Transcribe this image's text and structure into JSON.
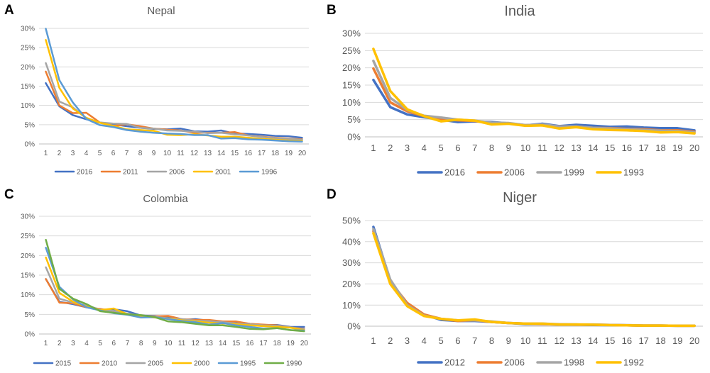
{
  "panels": [
    {
      "letter": "A",
      "chart_data": {
        "type": "line",
        "title": "Nepal",
        "xlabel": "",
        "ylabel": "",
        "x": [
          1,
          2,
          3,
          4,
          5,
          6,
          7,
          8,
          9,
          10,
          11,
          12,
          13,
          14,
          15,
          16,
          17,
          18,
          19,
          20
        ],
        "ylim": [
          0,
          30
        ],
        "yticks": [
          "0%",
          "5%",
          "10%",
          "15%",
          "20%",
          "25%",
          "30%"
        ],
        "grid": true,
        "legend": "bottom",
        "series": [
          {
            "name": "2016",
            "color": "#4472C4",
            "values": [
              15.8,
              9.8,
              7.5,
              6.4,
              5.5,
              5.1,
              4.6,
              4.2,
              3.9,
              3.8,
              4.0,
              3.3,
              3.2,
              3.5,
              2.7,
              2.6,
              2.4,
              2.1,
              2.0,
              1.6
            ]
          },
          {
            "name": "2011",
            "color": "#ED7D31",
            "values": [
              18.8,
              10.0,
              8.0,
              8.1,
              5.6,
              4.7,
              5.1,
              4.6,
              4.0,
              3.7,
              3.5,
              2.9,
              2.9,
              2.9,
              3.1,
              2.2,
              1.9,
              1.6,
              1.4,
              1.2
            ]
          },
          {
            "name": "2006",
            "color": "#A5A5A5",
            "values": [
              21.0,
              11.0,
              9.5,
              6.7,
              5.6,
              5.3,
              5.2,
              4.2,
              4.0,
              3.5,
              3.4,
              3.2,
              2.8,
              2.9,
              2.5,
              2.2,
              1.8,
              1.5,
              1.3,
              1.1
            ]
          },
          {
            "name": "2001",
            "color": "#FFC000",
            "values": [
              27.0,
              14.6,
              9.2,
              6.8,
              5.5,
              4.7,
              3.8,
              3.6,
              3.4,
              2.4,
              2.3,
              2.5,
              2.2,
              1.9,
              1.9,
              1.6,
              1.3,
              1.1,
              0.9,
              0.8
            ]
          },
          {
            "name": "1996",
            "color": "#5B9BD5",
            "values": [
              29.9,
              16.6,
              10.8,
              6.5,
              4.9,
              4.4,
              3.6,
              3.2,
              2.9,
              2.7,
              2.6,
              2.3,
              2.3,
              1.4,
              1.5,
              1.2,
              1.1,
              0.9,
              0.7,
              0.6
            ]
          }
        ]
      }
    },
    {
      "letter": "B",
      "chart_data": {
        "type": "line",
        "title": "India",
        "xlabel": "",
        "ylabel": "",
        "x": [
          1,
          2,
          3,
          4,
          5,
          6,
          7,
          8,
          9,
          10,
          11,
          12,
          13,
          14,
          15,
          16,
          17,
          18,
          19,
          20
        ],
        "ylim": [
          0,
          30
        ],
        "yticks": [
          "0%",
          "5%",
          "10%",
          "15%",
          "20%",
          "25%",
          "30%"
        ],
        "grid": true,
        "legend": "bottom",
        "series": [
          {
            "name": "2016",
            "color": "#4472C4",
            "values": [
              16.5,
              8.6,
              6.5,
              5.7,
              5.0,
              4.3,
              4.5,
              4.3,
              3.9,
              3.3,
              3.8,
              3.1,
              3.5,
              3.2,
              2.9,
              3.0,
              2.7,
              2.5,
              2.5,
              1.9
            ]
          },
          {
            "name": "2006",
            "color": "#ED7D31",
            "values": [
              19.8,
              10.0,
              7.4,
              6.0,
              5.2,
              4.8,
              4.6,
              4.0,
              3.9,
              3.4,
              3.5,
              3.0,
              3.0,
              2.6,
              2.5,
              2.3,
              2.2,
              1.9,
              1.9,
              1.5
            ]
          },
          {
            "name": "1999",
            "color": "#A5A5A5",
            "values": [
              22.0,
              11.3,
              7.8,
              6.1,
              5.6,
              5.0,
              4.7,
              4.1,
              4.0,
              3.4,
              3.6,
              3.0,
              3.0,
              2.6,
              2.4,
              2.2,
              2.0,
              1.8,
              1.7,
              1.3
            ]
          },
          {
            "name": "1993",
            "color": "#FFC000",
            "values": [
              25.5,
              13.3,
              8.0,
              6.0,
              4.5,
              5.0,
              4.7,
              3.6,
              3.8,
              3.2,
              3.3,
              2.4,
              2.8,
              2.2,
              2.0,
              1.9,
              1.7,
              1.3,
              1.4,
              1.0
            ]
          }
        ]
      }
    },
    {
      "letter": "C",
      "chart_data": {
        "type": "line",
        "title": "Colombia",
        "xlabel": "",
        "ylabel": "",
        "x": [
          1,
          2,
          3,
          4,
          5,
          6,
          7,
          8,
          9,
          10,
          11,
          12,
          13,
          14,
          15,
          16,
          17,
          18,
          19,
          20
        ],
        "ylim": [
          0,
          30
        ],
        "yticks": [
          "0%",
          "5%",
          "10%",
          "15%",
          "20%",
          "25%",
          "30%"
        ],
        "grid": true,
        "legend": "bottom",
        "series": [
          {
            "name": "2015",
            "color": "#4472C4",
            "values": [
              14.0,
              8.2,
              7.6,
              6.8,
              6.2,
              6.3,
              5.8,
              4.7,
              4.6,
              4.2,
              3.6,
              3.8,
              3.4,
              3.1,
              3.0,
              2.6,
              2.3,
              2.3,
              1.8,
              1.8
            ]
          },
          {
            "name": "2010",
            "color": "#ED7D31",
            "values": [
              14.0,
              8.0,
              7.8,
              6.8,
              6.4,
              5.8,
              5.0,
              4.6,
              4.5,
              4.6,
              3.8,
              3.6,
              3.6,
              3.2,
              3.2,
              2.6,
              2.4,
              2.2,
              1.7,
              1.3
            ]
          },
          {
            "name": "2005",
            "color": "#A5A5A5",
            "values": [
              17.0,
              9.0,
              8.0,
              7.3,
              6.2,
              5.9,
              5.2,
              4.7,
              4.4,
              4.0,
              3.8,
              3.4,
              3.3,
              3.0,
              2.7,
              2.5,
              2.2,
              2.1,
              1.7,
              1.2
            ]
          },
          {
            "name": "2000",
            "color": "#FFC000",
            "values": [
              19.5,
              10.5,
              8.2,
              7.0,
              6.1,
              6.5,
              5.0,
              4.5,
              4.2,
              3.9,
              3.5,
              3.2,
              2.9,
              2.7,
              2.5,
              2.2,
              2.0,
              1.8,
              1.6,
              1.0
            ]
          },
          {
            "name": "1995",
            "color": "#5B9BD5",
            "values": [
              22.0,
              12.0,
              8.8,
              6.8,
              6.0,
              5.3,
              4.9,
              4.2,
              4.3,
              3.8,
              3.3,
              3.0,
              2.4,
              2.8,
              2.2,
              1.8,
              1.4,
              1.5,
              1.0,
              0.9
            ]
          },
          {
            "name": "1990",
            "color": "#70AD47",
            "values": [
              24.0,
              11.5,
              9.0,
              7.6,
              5.8,
              5.4,
              5.0,
              4.8,
              4.3,
              3.2,
              3.0,
              2.6,
              2.2,
              2.2,
              1.8,
              1.3,
              1.2,
              1.5,
              1.0,
              0.7
            ]
          }
        ]
      }
    },
    {
      "letter": "D",
      "chart_data": {
        "type": "line",
        "title": "Niger",
        "xlabel": "",
        "ylabel": "",
        "x": [
          1,
          2,
          3,
          4,
          5,
          6,
          7,
          8,
          9,
          10,
          11,
          12,
          13,
          14,
          15,
          16,
          17,
          18,
          19,
          20
        ],
        "ylim": [
          0,
          50
        ],
        "yticks": [
          "0%",
          "10%",
          "20%",
          "30%",
          "40%",
          "50%"
        ],
        "grid": true,
        "legend": "bottom",
        "series": [
          {
            "name": "2012",
            "color": "#4472C4",
            "values": [
              47.0,
              21.5,
              10.5,
              5.5,
              3.0,
              2.5,
              2.5,
              2.0,
              1.5,
              1.0,
              1.0,
              0.8,
              0.8,
              0.6,
              0.5,
              0.4,
              0.3,
              0.3,
              0.2,
              0.2
            ]
          },
          {
            "name": "2006",
            "color": "#ED7D31",
            "values": [
              45.0,
              21.0,
              11.0,
              5.5,
              3.5,
              2.5,
              2.8,
              2.0,
              1.5,
              1.2,
              1.0,
              0.8,
              0.7,
              0.7,
              0.6,
              0.4,
              0.3,
              0.3,
              0.2,
              0.2
            ]
          },
          {
            "name": "1998",
            "color": "#A5A5A5",
            "values": [
              46.0,
              22.0,
              10.0,
              5.0,
              3.5,
              2.8,
              2.8,
              2.2,
              1.5,
              1.2,
              1.2,
              0.9,
              0.8,
              0.8,
              0.6,
              0.5,
              0.3,
              0.3,
              0.2,
              0.2
            ]
          },
          {
            "name": "1992",
            "color": "#FFC000",
            "values": [
              44.0,
              20.0,
              9.5,
              4.8,
              3.5,
              2.8,
              3.2,
              2.0,
              1.5,
              1.2,
              1.2,
              0.8,
              0.8,
              0.7,
              0.5,
              0.4,
              0.3,
              0.3,
              0.2,
              0.2
            ]
          }
        ]
      }
    }
  ]
}
